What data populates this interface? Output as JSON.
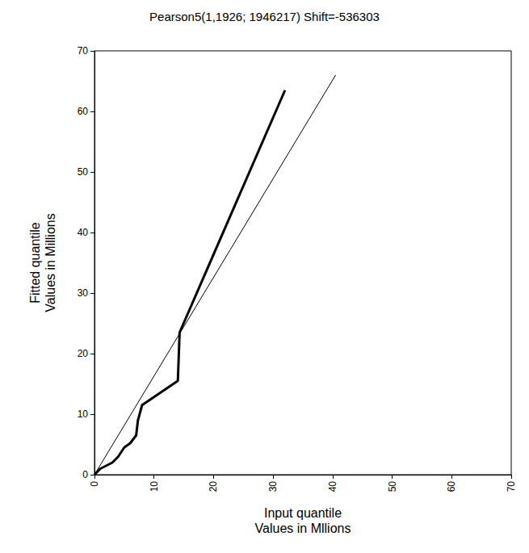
{
  "chart_data": {
    "type": "line",
    "title": "Pearson5(1,1926; 1946217) Shift=-536303",
    "x_label": "Input quantile\nValues in Mllions",
    "y_label": "Fitted quantile\nValues in Millions",
    "xlim": [
      0,
      70
    ],
    "xticks": [
      0,
      10,
      20,
      30,
      40,
      50,
      60,
      70
    ],
    "ylim": [
      0,
      70
    ],
    "yticks": [
      0,
      10,
      20,
      30,
      40,
      50,
      60,
      70
    ],
    "grid": false,
    "series": [
      {
        "color": "#000000",
        "line_style": "thick",
        "x": [
          0,
          1,
          2,
          3,
          4,
          5,
          6,
          7,
          7.3,
          8,
          14,
          14.3,
          32
        ],
        "values": [
          0,
          1,
          1.5,
          2,
          3,
          4.5,
          5.2,
          6.5,
          9,
          11.5,
          15.5,
          23.5,
          63.5
        ]
      },
      {
        "color": "#000000",
        "line_style": "thin",
        "x": [
          0,
          40.5
        ],
        "values": [
          0,
          66
        ]
      }
    ]
  }
}
